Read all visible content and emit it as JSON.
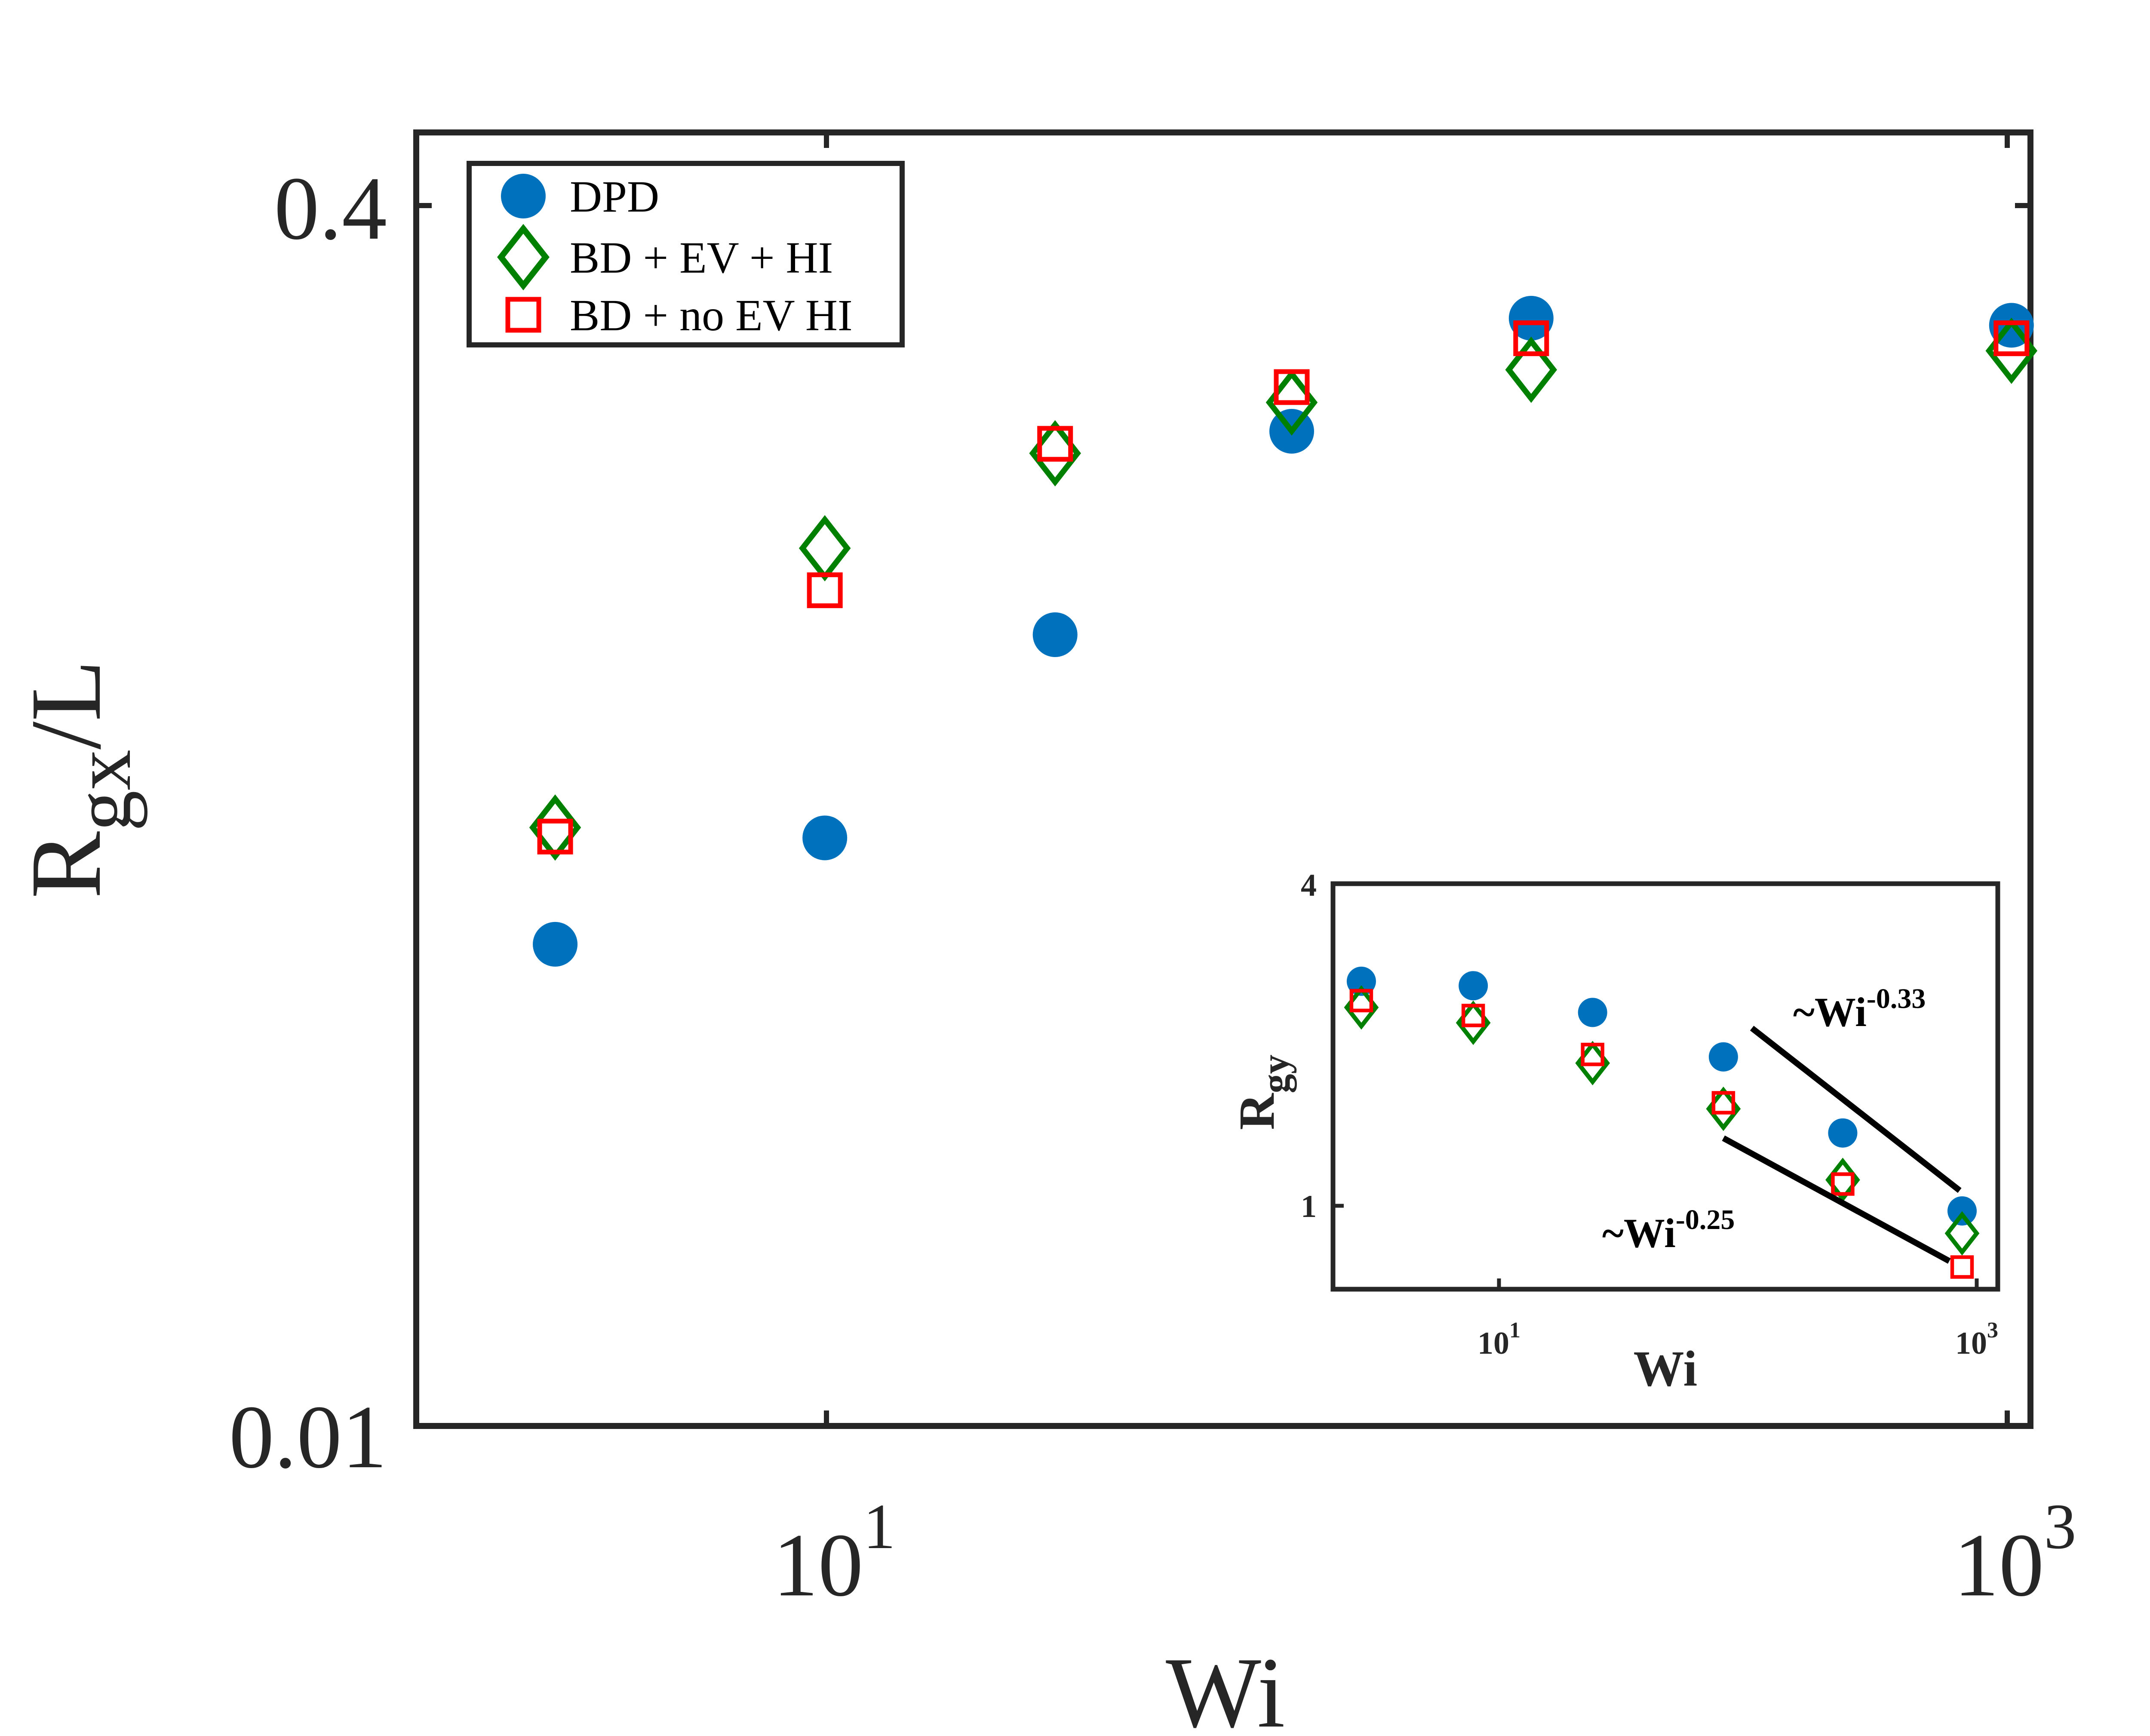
{
  "colors": {
    "dpd": "#0072BD",
    "bd_ev_hi": "#008000",
    "bd_no_ev_hi": "#FF0000",
    "axis": "#262626"
  },
  "chart_data": [
    {
      "type": "scatter",
      "panel": "main",
      "xlabel": "Wi",
      "ylabel_main": "R",
      "ylabel_sub": "gx",
      "ylabel_suffix": "/L",
      "x_scale": "log",
      "y_scale": "log",
      "x_tick_labels": [
        {
          "base": "10",
          "exp": "1",
          "value": 10
        },
        {
          "base": "10",
          "exp": "3",
          "value": 1000
        }
      ],
      "y_tick_labels": [
        {
          "text": "0.4",
          "value": 0.4
        },
        {
          "text": "0.01",
          "value": 0.01
        }
      ],
      "xlim": [
        2.1,
        1000
      ],
      "ylim": [
        0.01,
        0.4
      ],
      "legend_position": "top-left",
      "series": [
        {
          "name": "DPD",
          "marker": "filled-circle",
          "x": [
            3.57,
            10,
            24.1,
            59.5,
            148.5,
            930
          ],
          "y": [
            0.0395,
            0.0535,
            0.0955,
            0.1706,
            0.2355,
            0.2308
          ]
        },
        {
          "name": "BD + EV + HI",
          "marker": "diamond",
          "x": [
            3.57,
            10,
            24.1,
            59.5,
            148.5,
            930
          ],
          "y": [
            0.0551,
            0.1222,
            0.1602,
            0.1852,
            0.2033,
            0.2146
          ]
        },
        {
          "name": "BD + no EV HI",
          "marker": "square",
          "x": [
            3.57,
            10,
            24.1,
            59.5,
            148.5,
            930
          ],
          "y": [
            0.0537,
            0.1084,
            0.1646,
            0.1935,
            0.2224,
            0.2224
          ]
        }
      ]
    },
    {
      "type": "scatter",
      "panel": "inset",
      "xlabel": "Wi",
      "ylabel_main": "R",
      "ylabel_sub": "gy",
      "x_scale": "log",
      "y_scale": "log",
      "x_tick_labels": [
        {
          "base": "10",
          "exp": "1",
          "value": 10
        },
        {
          "base": "10",
          "exp": "3",
          "value": 1000
        }
      ],
      "y_tick_labels": [
        {
          "text": "4",
          "value": 4
        },
        {
          "text": "1",
          "value": 1
        }
      ],
      "xlim": [
        2.75,
        1250
      ],
      "ylim": [
        0.7,
        4
      ],
      "series": [
        {
          "name": "DPD",
          "marker": "filled-circle",
          "x": [
            3.57,
            10,
            30,
            100,
            300,
            900
          ],
          "y": [
            2.63,
            2.58,
            2.3,
            1.9,
            1.37,
            0.98
          ]
        },
        {
          "name": "BD + EV + HI",
          "marker": "diamond",
          "x": [
            3.57,
            10,
            30,
            100,
            300,
            900
          ],
          "y": [
            2.35,
            2.2,
            1.85,
            1.52,
            1.12,
            0.89
          ]
        },
        {
          "name": "BD + no EV HI",
          "marker": "square",
          "x": [
            3.57,
            10,
            30,
            100,
            300,
            900
          ],
          "y": [
            2.42,
            2.27,
            1.92,
            1.56,
            1.1,
            0.77
          ]
        }
      ],
      "annotations": [
        {
          "text": "~Wi",
          "exponent": "-0.33",
          "x": [
            130,
            880
          ],
          "y": [
            2.15,
            1.07
          ]
        },
        {
          "text": "~Wi",
          "exponent": "-0.25",
          "x": [
            100,
            800
          ],
          "y": [
            1.34,
            0.79
          ]
        }
      ]
    }
  ]
}
